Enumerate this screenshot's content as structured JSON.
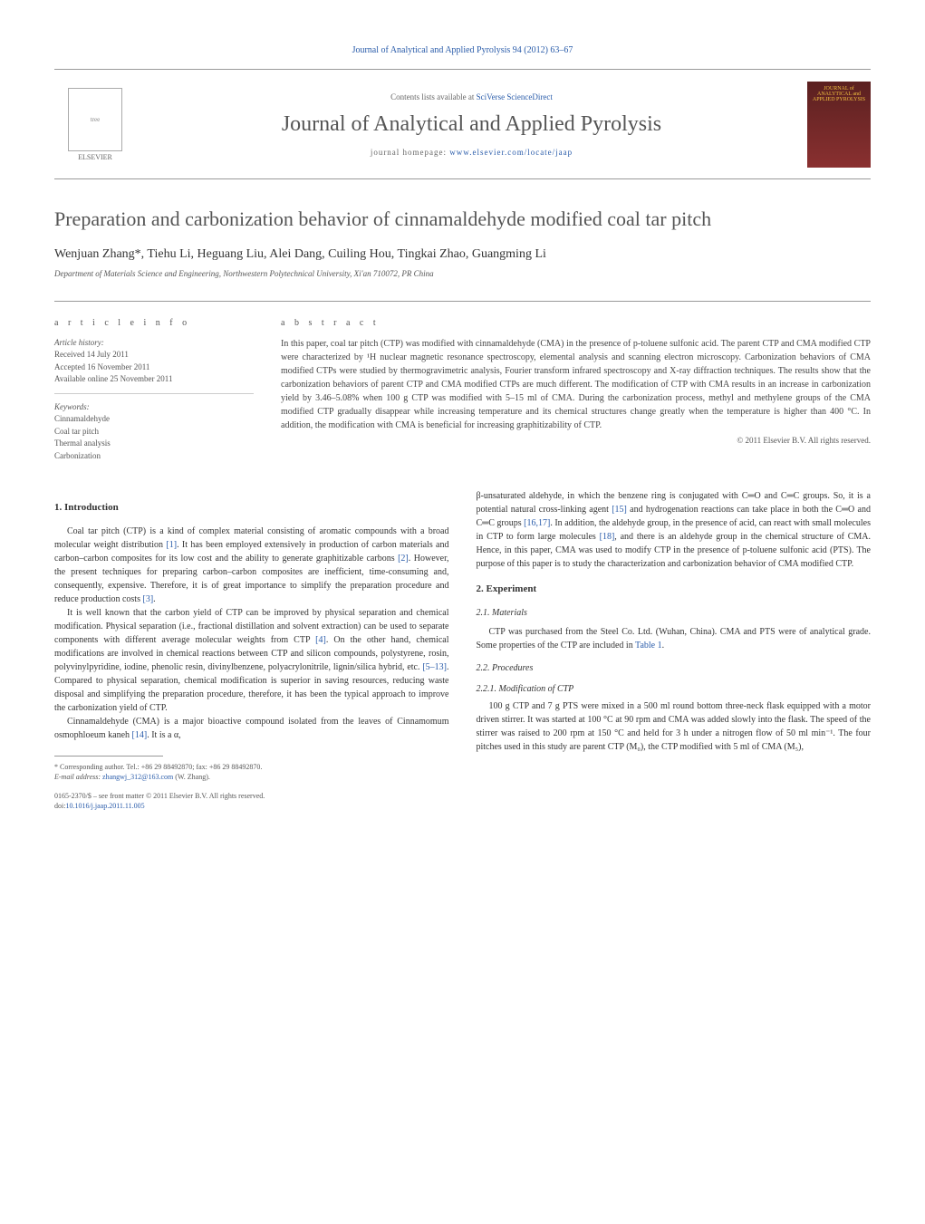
{
  "journal_ref": "Journal of Analytical and Applied Pyrolysis 94 (2012) 63–67",
  "contents_text": "Contents lists available at ",
  "contents_link": "SciVerse ScienceDirect",
  "journal_title": "Journal of Analytical and Applied Pyrolysis",
  "homepage_prefix": "journal homepage: ",
  "homepage_link": "www.elsevier.com/locate/jaap",
  "publisher_name": "ELSEVIER",
  "cover_text_top": "JOURNAL of ANALYTICAL and APPLIED PYROLYSIS",
  "article": {
    "title": "Preparation and carbonization behavior of cinnamaldehyde modified coal tar pitch",
    "authors": "Wenjuan Zhang*, Tiehu Li, Heguang Liu, Alei Dang, Cuiling Hou, Tingkai Zhao, Guangming Li",
    "affiliation": "Department of Materials Science and Engineering, Northwestern Polytechnical University, Xi'an 710072, PR China"
  },
  "info": {
    "heading": "a r t i c l e   i n f o",
    "history_label": "Article history:",
    "received": "Received 14 July 2011",
    "accepted": "Accepted 16 November 2011",
    "available": "Available online 25 November 2011",
    "keywords_label": "Keywords:",
    "kw1": "Cinnamaldehyde",
    "kw2": "Coal tar pitch",
    "kw3": "Thermal analysis",
    "kw4": "Carbonization"
  },
  "abstract": {
    "heading": "a b s t r a c t",
    "text": "In this paper, coal tar pitch (CTP) was modified with cinnamaldehyde (CMA) in the presence of p-toluene sulfonic acid. The parent CTP and CMA modified CTP were characterized by ¹H nuclear magnetic resonance spectroscopy, elemental analysis and scanning electron microscopy. Carbonization behaviors of CMA modified CTPs were studied by thermogravimetric analysis, Fourier transform infrared spectroscopy and X-ray diffraction techniques. The results show that the carbonization behaviors of parent CTP and CMA modified CTPs are much different. The modification of CTP with CMA results in an increase in carbonization yield by 3.46–5.08% when 100 g CTP was modified with 5–15 ml of CMA. During the carbonization process, methyl and methylene groups of the CMA modified CTP gradually disappear while increasing temperature and its chemical structures change greatly when the temperature is higher than 400 °C. In addition, the modification with CMA is beneficial for increasing graphitizability of CTP.",
    "copyright": "© 2011 Elsevier B.V. All rights reserved."
  },
  "body": {
    "intro_heading": "1. Introduction",
    "intro_p1_a": "Coal tar pitch (CTP) is a kind of complex material consisting of aromatic compounds with a broad molecular weight distribution ",
    "intro_p1_ref1": "[1]",
    "intro_p1_b": ". It has been employed extensively in production of carbon materials and carbon–carbon composites for its low cost and the ability to generate graphitizable carbons ",
    "intro_p1_ref2": "[2]",
    "intro_p1_c": ". However, the present techniques for preparing carbon–carbon composites are inefficient, time-consuming and, consequently, expensive. Therefore, it is of great importance to simplify the preparation procedure and reduce production costs ",
    "intro_p1_ref3": "[3]",
    "intro_p1_d": ".",
    "intro_p2_a": "It is well known that the carbon yield of CTP can be improved by physical separation and chemical modification. Physical separation (i.e., fractional distillation and solvent extraction) can be used to separate components with different average molecular weights from CTP ",
    "intro_p2_ref4": "[4]",
    "intro_p2_b": ". On the other hand, chemical modifications are involved in chemical reactions between CTP and silicon compounds, polystyrene, rosin, polyvinylpyridine, iodine, phenolic resin, divinylbenzene, polyacrylonitrile, lignin/silica hybrid, etc. ",
    "intro_p2_ref5": "[5–13]",
    "intro_p2_c": ". Compared to physical separation, chemical modification is superior in saving resources, reducing waste disposal and simplifying the preparation procedure, therefore, it has been the typical approach to improve the carbonization yield of CTP.",
    "intro_p3_a": "Cinnamaldehyde (CMA) is a major bioactive compound isolated from the leaves of Cinnamomum osmophloeum kaneh ",
    "intro_p3_ref14": "[14]",
    "intro_p3_b": ". It is a α,",
    "col2_p1_a": "β-unsaturated aldehyde, in which the benzene ring is conjugated with C═O and C═C groups. So, it is a potential natural cross-linking agent ",
    "col2_p1_ref15": "[15]",
    "col2_p1_b": " and hydrogenation reactions can take place in both the C═O and C═C groups ",
    "col2_p1_ref16": "[16,17]",
    "col2_p1_c": ". In addition, the aldehyde group, in the presence of acid, can react with small molecules in CTP to form large molecules ",
    "col2_p1_ref18": "[18]",
    "col2_p1_d": ", and there is an aldehyde group in the chemical structure of CMA. Hence, in this paper, CMA was used to modify CTP in the presence of p-toluene sulfonic acid (PTS). The purpose of this paper is to study the characterization and carbonization behavior of CMA modified CTP.",
    "exp_heading": "2. Experiment",
    "materials_heading": "2.1. Materials",
    "materials_p_a": "CTP was purchased from the Steel Co. Ltd. (Wuhan, China). CMA and PTS were of analytical grade. Some properties of the CTP are included in ",
    "materials_ref": "Table 1",
    "materials_p_b": ".",
    "procedures_heading": "2.2. Procedures",
    "modification_heading": "2.2.1. Modification of CTP",
    "modification_p": "100 g CTP and 7 g PTS were mixed in a 500 ml round bottom three-neck flask equipped with a motor driven stirrer. It was started at 100 °C at 90 rpm and CMA was added slowly into the flask. The speed of the stirrer was raised to 200 rpm at 150 °C and held for 3 h under a nitrogen flow of 50 ml min⁻¹. The four pitches used in this study are parent CTP (M₀), the CTP modified with 5 ml of CMA (M₅),"
  },
  "footnote": {
    "corr": "* Corresponding author. Tel.: +86 29 88492870; fax: +86 29 88492870.",
    "email_label": "E-mail address: ",
    "email": "zhangwj_312@163.com",
    "email_suffix": " (W. Zhang)."
  },
  "bottom": {
    "issn": "0165-2370/$ – see front matter © 2011 Elsevier B.V. All rights reserved.",
    "doi_prefix": "doi:",
    "doi": "10.1016/j.jaap.2011.11.005"
  },
  "colors": {
    "link": "#2a5caa",
    "text": "#333333",
    "muted": "#555555",
    "rule": "#999999"
  }
}
